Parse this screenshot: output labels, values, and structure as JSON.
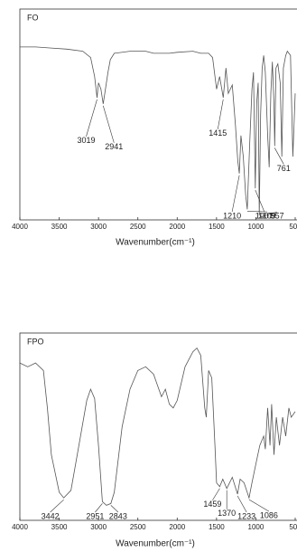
{
  "chart_data": [
    {
      "type": "line",
      "title": "FO",
      "xlabel": "Wavenumber(cm⁻¹)",
      "color": "#555555",
      "xlim": [
        4000,
        500
      ],
      "xticks": [
        4000,
        3500,
        3000,
        2500,
        2000,
        1500,
        1000,
        500
      ],
      "ylim": [
        0,
        100
      ],
      "x": [
        4000,
        3800,
        3600,
        3400,
        3200,
        3100,
        3050,
        3019,
        3000,
        2970,
        2941,
        2920,
        2880,
        2850,
        2800,
        2600,
        2400,
        2300,
        2100,
        2000,
        1800,
        1700,
        1600,
        1550,
        1500,
        1460,
        1415,
        1400,
        1380,
        1350,
        1300,
        1260,
        1230,
        1210,
        1190,
        1160,
        1130,
        1109,
        1080,
        1050,
        1030,
        1007,
        990,
        970,
        957,
        940,
        920,
        900,
        880,
        850,
        830,
        810,
        790,
        770,
        761,
        745,
        720,
        690,
        670,
        650,
        620,
        600,
        560,
        530,
        500
      ],
      "values": [
        82,
        82,
        81.5,
        81,
        80,
        77,
        68,
        58,
        65,
        62,
        55,
        60,
        70,
        76,
        79,
        80,
        80,
        79,
        79,
        79.5,
        80,
        79,
        79,
        77,
        62,
        68,
        58,
        64,
        72,
        60,
        64,
        45,
        28,
        22,
        40,
        30,
        12,
        5,
        35,
        62,
        70,
        15,
        55,
        65,
        2,
        50,
        72,
        78,
        70,
        40,
        25,
        60,
        75,
        55,
        35,
        72,
        74,
        65,
        30,
        72,
        78,
        80,
        78,
        30,
        60
      ],
      "annotations": [
        {
          "label": "3019",
          "x": 3019
        },
        {
          "label": "2941",
          "x": 2941
        },
        {
          "label": "1415",
          "x": 1415
        },
        {
          "label": "1210",
          "x": 1210
        },
        {
          "label": "1007",
          "x": 1007
        },
        {
          "label": "957",
          "x": 957
        },
        {
          "label": "1109",
          "x": 1109
        },
        {
          "label": "761",
          "x": 761
        }
      ]
    },
    {
      "type": "line",
      "title": "FPO",
      "xlabel": "Wavenumber(cm⁻¹)",
      "color": "#555555",
      "xlim": [
        4000,
        500
      ],
      "xticks": [
        4000,
        3500,
        3000,
        2500,
        2000,
        1500,
        1000,
        500
      ],
      "ylim": [
        0,
        100
      ],
      "x": [
        4000,
        3900,
        3800,
        3700,
        3650,
        3600,
        3500,
        3442,
        3350,
        3250,
        3150,
        3100,
        3050,
        3000,
        2951,
        2900,
        2843,
        2800,
        2700,
        2600,
        2500,
        2400,
        2300,
        2250,
        2200,
        2150,
        2100,
        2050,
        2000,
        1900,
        1800,
        1750,
        1700,
        1650,
        1630,
        1600,
        1560,
        1520,
        1500,
        1459,
        1420,
        1370,
        1300,
        1233,
        1200,
        1150,
        1086,
        1050,
        1000,
        950,
        900,
        880,
        850,
        820,
        800,
        770,
        740,
        700,
        660,
        620,
        580,
        550,
        500
      ],
      "values": [
        84,
        82,
        84,
        80,
        60,
        35,
        15,
        12,
        16,
        40,
        64,
        70,
        65,
        40,
        10,
        8,
        9,
        15,
        50,
        70,
        80,
        82,
        78,
        72,
        66,
        70,
        62,
        60,
        64,
        82,
        90,
        92,
        88,
        60,
        55,
        80,
        76,
        40,
        20,
        18,
        22,
        17,
        23,
        14,
        22,
        20,
        12,
        20,
        30,
        40,
        45,
        38,
        60,
        40,
        62,
        35,
        55,
        40,
        55,
        45,
        60,
        55,
        58
      ],
      "annotations": [
        {
          "label": "3442",
          "x": 3442
        },
        {
          "label": "2951",
          "x": 2951
        },
        {
          "label": "2843",
          "x": 2843
        },
        {
          "label": "1459",
          "x": 1459
        },
        {
          "label": "1370",
          "x": 1370
        },
        {
          "label": "1233",
          "x": 1233
        },
        {
          "label": "1086",
          "x": 1086
        }
      ]
    }
  ]
}
